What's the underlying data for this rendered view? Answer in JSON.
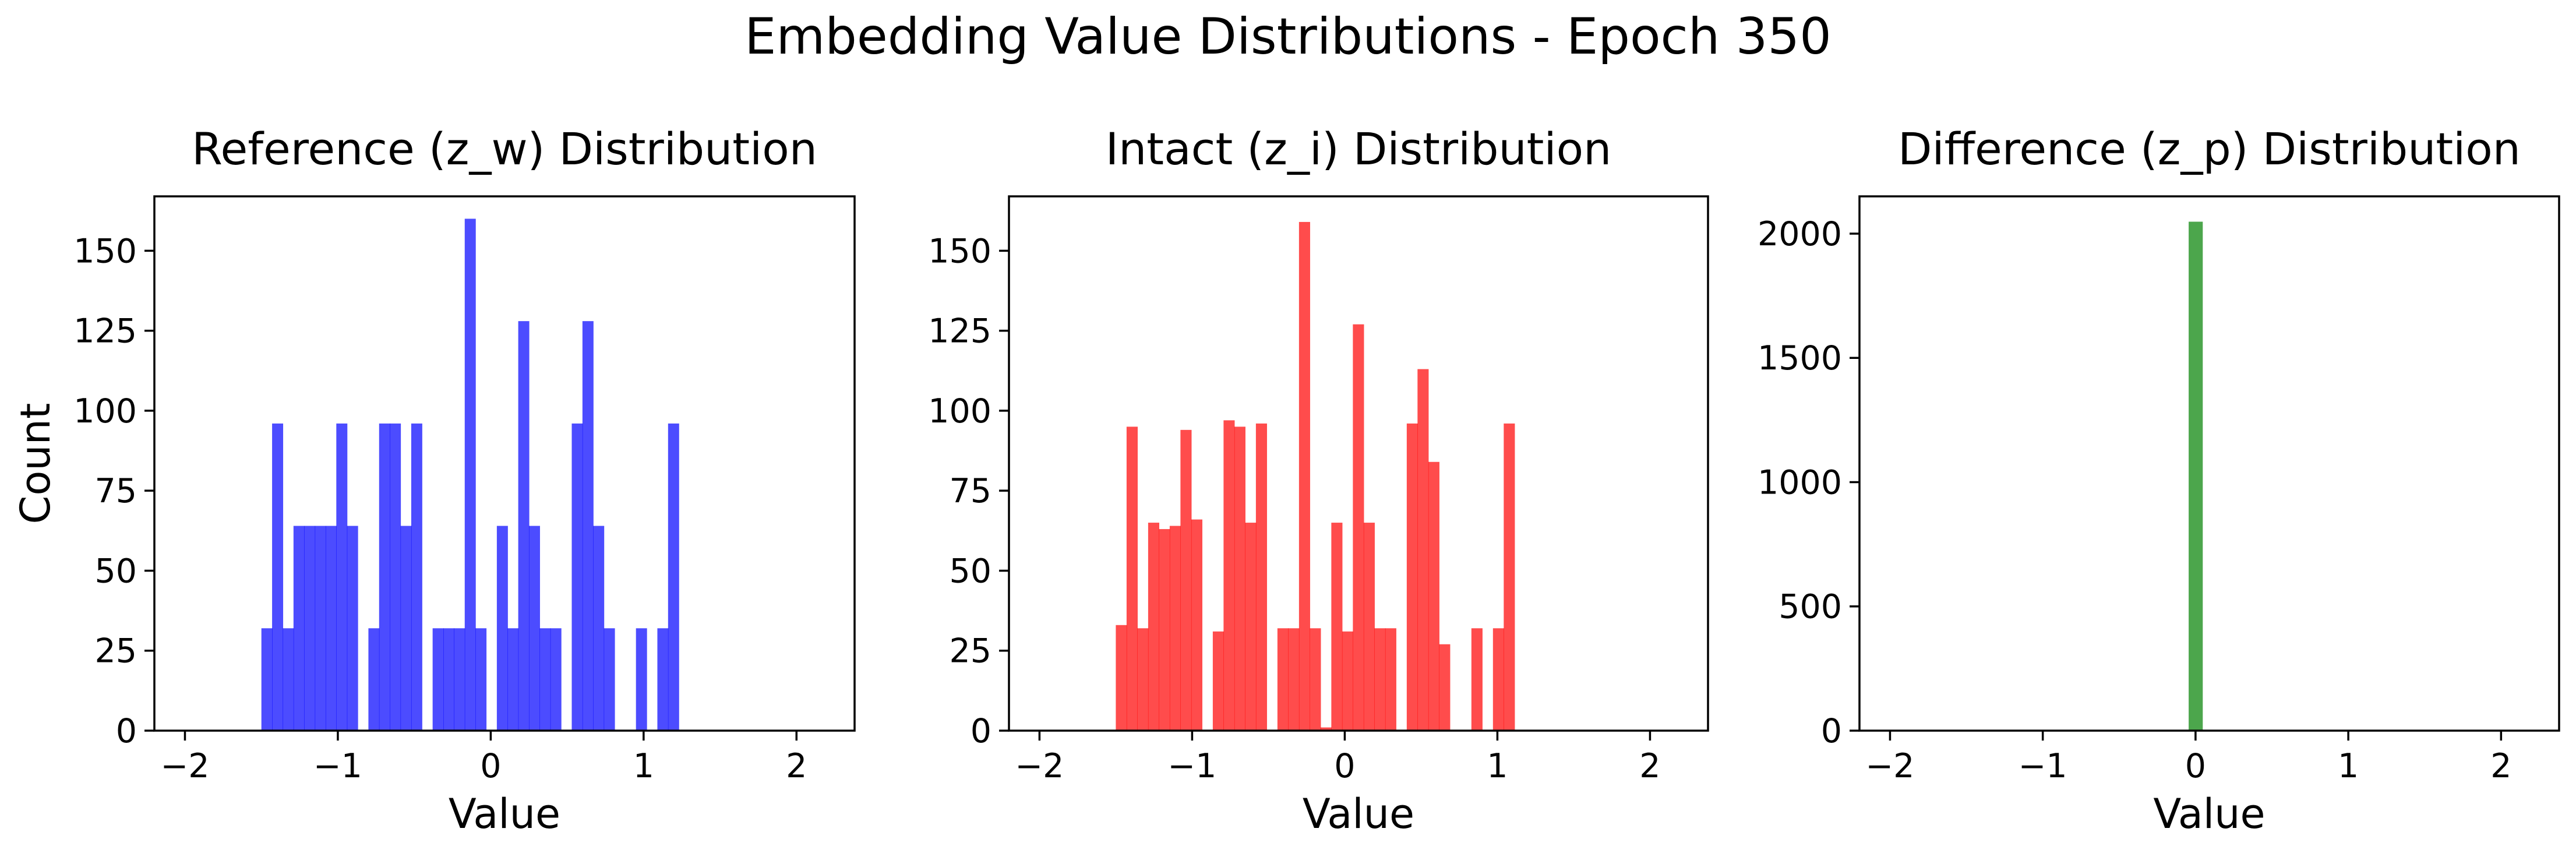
{
  "figure": {
    "title": "Embedding Value Distributions - Epoch 350"
  },
  "chart_data": [
    {
      "type": "histogram",
      "title": "Reference (z_w) Distribution",
      "xlabel": "Value",
      "ylabel": "Count",
      "xlim": [
        -2.2,
        2.38
      ],
      "ylim": [
        0,
        167
      ],
      "xticks": [
        -2,
        -1,
        0,
        1,
        2
      ],
      "xtick_labels": [
        "−2",
        "−1",
        "0",
        "1",
        "2"
      ],
      "yticks": [
        0,
        25,
        50,
        75,
        100,
        125,
        150
      ],
      "ytick_labels": [
        "0",
        "25",
        "50",
        "75",
        "100",
        "125",
        "150"
      ],
      "bin_start": -1.5,
      "bin_width": 0.07,
      "counts": [
        32,
        96,
        32,
        64,
        64,
        64,
        64,
        96,
        64,
        0,
        32,
        96,
        96,
        64,
        96,
        0,
        32,
        32,
        32,
        160,
        32,
        0,
        64,
        32,
        128,
        64,
        32,
        32,
        0,
        96,
        128,
        64,
        32,
        0,
        0,
        32,
        0,
        32,
        96
      ],
      "color": "#0000ff",
      "alpha": 0.7
    },
    {
      "type": "histogram",
      "title": "Intact (z_i) Distribution",
      "xlabel": "Value",
      "ylabel": "",
      "xlim": [
        -2.2,
        2.38
      ],
      "ylim": [
        0,
        167
      ],
      "xticks": [
        -2,
        -1,
        0,
        1,
        2
      ],
      "xtick_labels": [
        "−2",
        "−1",
        "0",
        "1",
        "2"
      ],
      "yticks": [
        0,
        25,
        50,
        75,
        100,
        125,
        150
      ],
      "ytick_labels": [
        "0",
        "25",
        "50",
        "75",
        "100",
        "125",
        "150"
      ],
      "bin_start": -1.5,
      "bin_width": 0.0706,
      "counts": [
        33,
        95,
        32,
        65,
        63,
        64,
        94,
        66,
        0,
        31,
        97,
        95,
        65,
        96,
        0,
        32,
        32,
        159,
        32,
        1,
        65,
        31,
        127,
        65,
        32,
        32,
        0,
        96,
        113,
        84,
        27,
        0,
        0,
        32,
        0,
        32,
        96
      ],
      "color": "#ff0000",
      "alpha": 0.7
    },
    {
      "type": "histogram",
      "title": "Difference (z_p) Distribution",
      "xlabel": "Value",
      "ylabel": "",
      "xlim": [
        -2.2,
        2.38
      ],
      "ylim": [
        0,
        2150
      ],
      "xticks": [
        -2,
        -1,
        0,
        1,
        2
      ],
      "xtick_labels": [
        "−2",
        "−1",
        "0",
        "1",
        "2"
      ],
      "yticks": [
        0,
        500,
        1000,
        1500,
        2000
      ],
      "ytick_labels": [
        "0",
        "500",
        "1000",
        "1500",
        "2000"
      ],
      "bin_start": -0.045,
      "bin_width": 0.09,
      "counts": [
        2048
      ],
      "color": "#008000",
      "alpha": 0.7
    }
  ]
}
